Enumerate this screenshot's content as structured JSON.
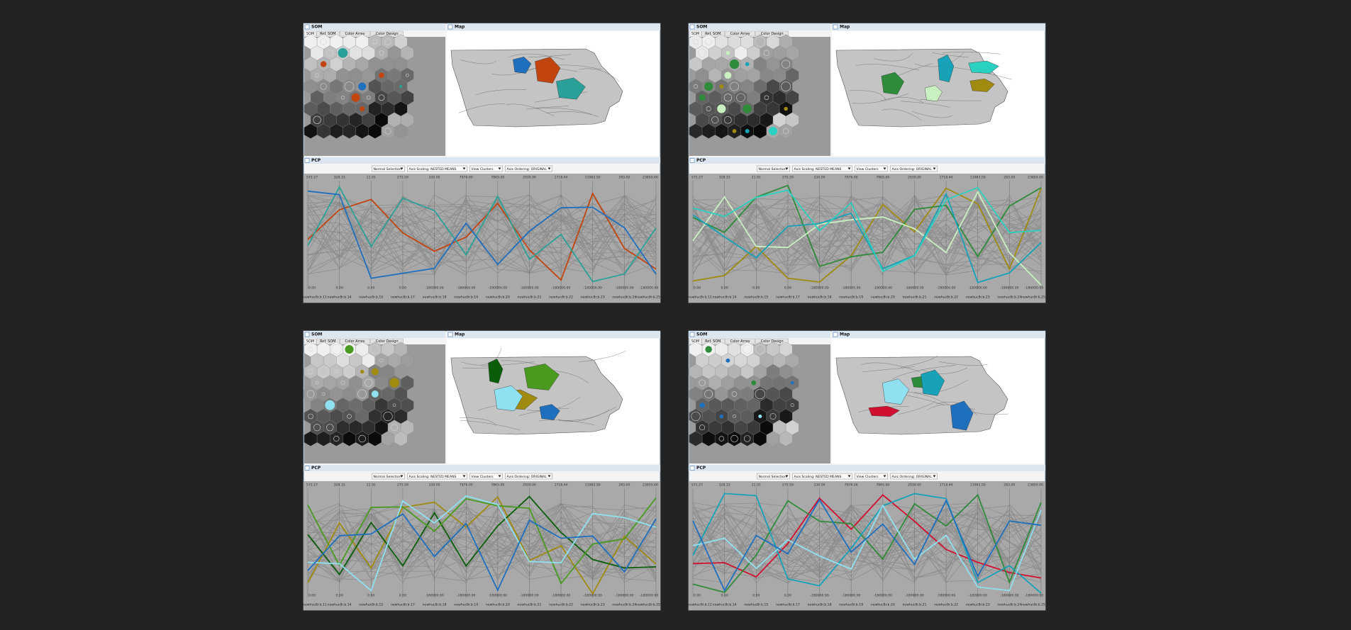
{
  "windows": {
    "som_title": "SOM",
    "map_title": "Map",
    "pcp_title": "PCP"
  },
  "tabs": [
    "SOM",
    "Ref. SOM",
    "Color Array",
    "Color Design"
  ],
  "controls": [
    "Normal Selection",
    "Axis Scaling: NESTED MEANS",
    "View Clusters",
    "Axis Ordering: ORIGINAL"
  ],
  "axes": [
    {
      "name": "newhuc8r.b.11",
      "top": "572.27",
      "bottom": "0.00"
    },
    {
      "name": "newhuc8r.b.14",
      "top": "328.33",
      "bottom": "0.00"
    },
    {
      "name": "newhuc8r.b.15",
      "top": "21.91",
      "bottom": "0.00"
    },
    {
      "name": "newhuc8r.b.17",
      "top": "275.59",
      "bottom": "0.00"
    },
    {
      "name": "newhuc8r.b.18",
      "top": "330.00",
      "bottom": "-180000.00"
    },
    {
      "name": "newhuc8r.b.19",
      "top": "7976.00",
      "bottom": "-180000.00"
    },
    {
      "name": "newhuc8r.b.20",
      "top": "7865.00",
      "bottom": "-180000.00"
    },
    {
      "name": "newhuc8r.b.21",
      "top": "2939.00",
      "bottom": "-180000.00"
    },
    {
      "name": "newhuc8r.b.22",
      "top": "1718.44",
      "bottom": "-180000.00"
    },
    {
      "name": "newhuc8r.b.23",
      "top": "11983.50",
      "bottom": "-180000.00"
    },
    {
      "name": "newhuc8r.b.24",
      "top": "283.00",
      "bottom": "-180000.00"
    },
    {
      "name": "newhuc8r.b.25",
      "top": "23850.00",
      "bottom": "-180000.00"
    }
  ]
}
